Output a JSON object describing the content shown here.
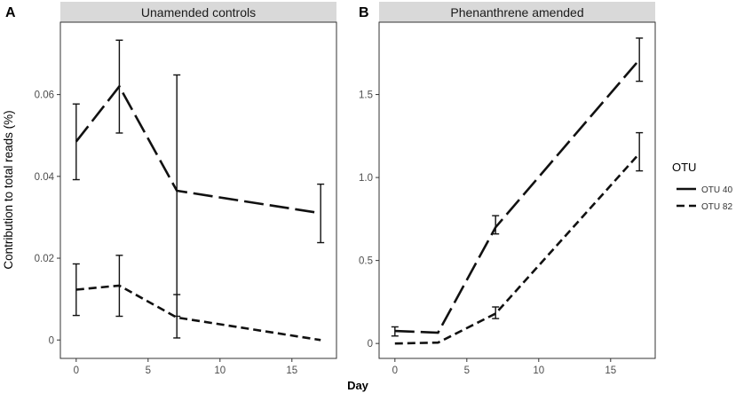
{
  "chart_data": [
    {
      "type": "line",
      "panel_letter": "A",
      "title": "Unamended controls",
      "xlabel": "Day",
      "ylabel": "Contribution to total reads (%)",
      "xlim": [
        -1.1,
        18.1
      ],
      "ylim": [
        -0.0045,
        0.0777
      ],
      "x_ticks": [
        0,
        5,
        10,
        15
      ],
      "x_tick_labels": [
        "0",
        "5",
        "10",
        "15"
      ],
      "y_ticks": [
        0,
        0.02,
        0.04,
        0.06
      ],
      "y_tick_labels": [
        "0",
        "0.02",
        "0.04",
        "0.06"
      ],
      "series": [
        {
          "name": "OTU 40",
          "dash": "long",
          "x": [
            0,
            3,
            7,
            17
          ],
          "y": [
            0.0485,
            0.062,
            0.0365,
            0.031
          ],
          "err_low": [
            0.0392,
            0.0506,
            0.0058,
            0.0238
          ],
          "err_high": [
            0.0577,
            0.0733,
            0.0648,
            0.0381
          ]
        },
        {
          "name": "OTU 82",
          "dash": "short",
          "x": [
            0,
            3,
            7,
            17
          ],
          "y": [
            0.0123,
            0.0133,
            0.0055,
            0.0
          ],
          "err_low": [
            0.006,
            0.0058,
            0.0005,
            0.0
          ],
          "err_high": [
            0.0186,
            0.0207,
            0.0111,
            0.0
          ]
        }
      ]
    },
    {
      "type": "line",
      "panel_letter": "B",
      "title": "Phenanthrene amended",
      "xlabel": "Day",
      "ylabel": "",
      "xlim": [
        -1.1,
        18.1
      ],
      "ylim": [
        -0.09,
        1.936
      ],
      "x_ticks": [
        0,
        5,
        10,
        15
      ],
      "x_tick_labels": [
        "0",
        "5",
        "10",
        "15"
      ],
      "y_ticks": [
        0,
        0.5,
        1.0,
        1.5
      ],
      "y_tick_labels": [
        "0",
        "0.5",
        "1.0",
        "1.5"
      ],
      "series": [
        {
          "name": "OTU 40",
          "dash": "long",
          "x": [
            0,
            3,
            7,
            17
          ],
          "y": [
            0.075,
            0.065,
            0.7,
            1.71
          ],
          "err_low": [
            0.045,
            0.065,
            0.66,
            1.58
          ],
          "err_high": [
            0.1,
            0.065,
            0.77,
            1.84
          ]
        },
        {
          "name": "OTU 82",
          "dash": "short",
          "x": [
            0,
            3,
            7,
            17
          ],
          "y": [
            0.0,
            0.005,
            0.18,
            1.145
          ],
          "err_low": [
            0.0,
            0.005,
            0.15,
            1.04
          ],
          "err_high": [
            0.0,
            0.005,
            0.22,
            1.27
          ]
        }
      ]
    }
  ],
  "legend": {
    "title": "OTU",
    "items": [
      {
        "label": "OTU 40",
        "dash": "long"
      },
      {
        "label": "OTU 82",
        "dash": "short"
      }
    ]
  },
  "shared_xlabel": "Day",
  "colors": {
    "line": "#111111",
    "strip": "#d9d9d9",
    "frame": "#333333",
    "tick_text": "#4d4d4d"
  }
}
